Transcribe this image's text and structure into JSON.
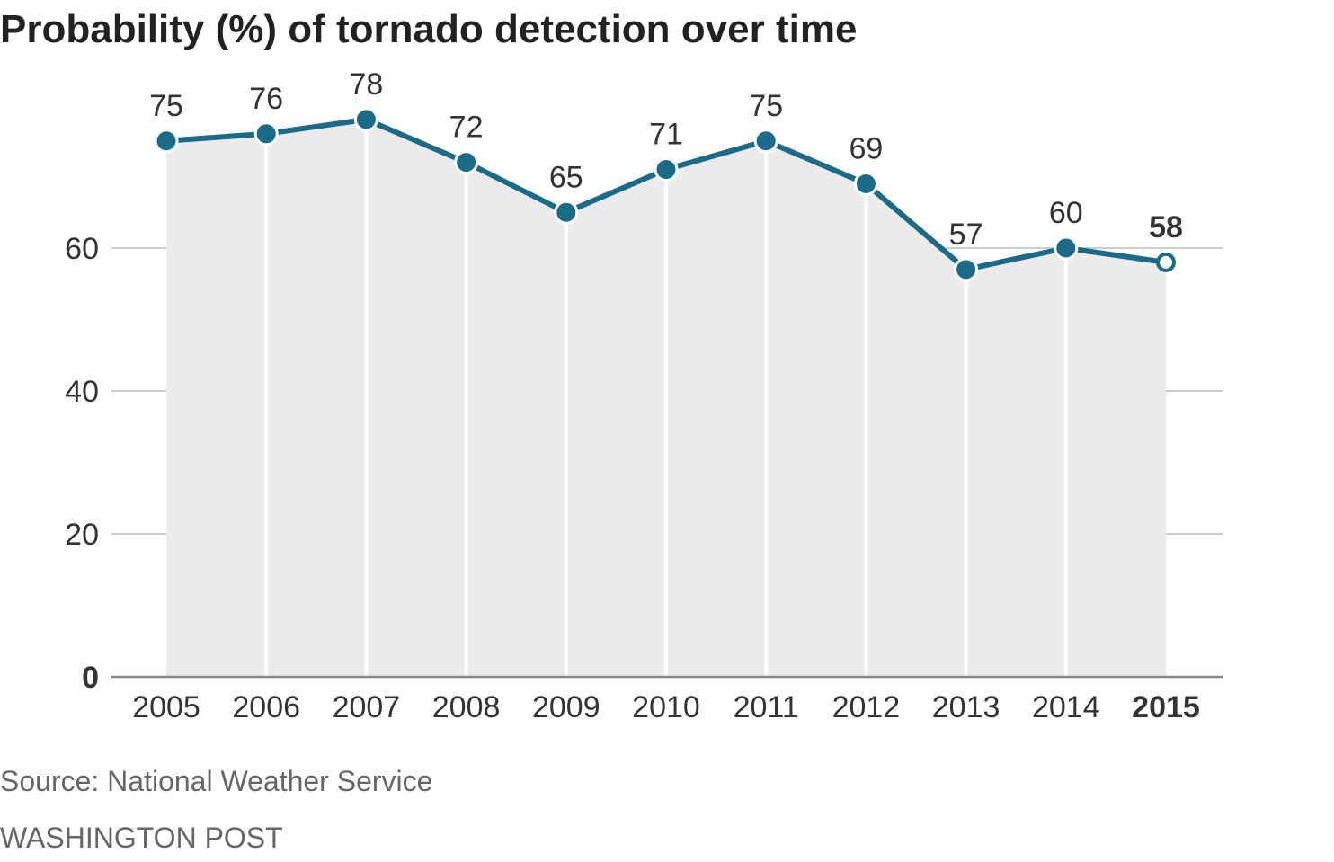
{
  "chart_data": {
    "type": "line",
    "title": "Probability (%) of tornado detection over time",
    "categories": [
      "2005",
      "2006",
      "2007",
      "2008",
      "2009",
      "2010",
      "2011",
      "2012",
      "2013",
      "2014",
      "2015"
    ],
    "values": [
      75,
      76,
      78,
      72,
      65,
      71,
      75,
      69,
      57,
      60,
      58
    ],
    "yticks": [
      "0",
      "20",
      "40",
      "60"
    ],
    "ylim": [
      0,
      80
    ],
    "grid": true,
    "highlight_last": true,
    "colors": {
      "line": "#1b6a87",
      "area": "#ebebeb",
      "grid": "#cccccc",
      "axis": "#888888"
    }
  },
  "source": "Source: National Weather Service",
  "credit": "WASHINGTON POST"
}
